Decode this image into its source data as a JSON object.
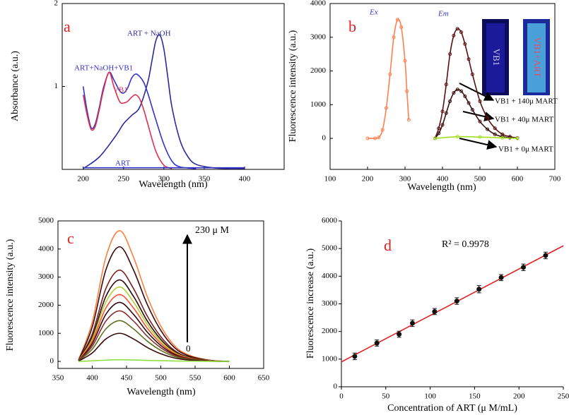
{
  "chart_data": [
    {
      "type": "line",
      "panel_label": "a",
      "x_label": "Wavelength (nm)",
      "y_label": "Absorbance (a.u.)",
      "xlim": [
        174,
        449
      ],
      "ylim": [
        0,
        2
      ],
      "xticks": [
        200,
        250,
        300,
        350,
        400
      ],
      "yticks": [
        1,
        2
      ],
      "series": [
        {
          "name": "ART + NaOH",
          "color": "#2a2a9a",
          "x": [
            200,
            220,
            240,
            250,
            260,
            270,
            280,
            285,
            290,
            295,
            300,
            305,
            310,
            320,
            330,
            340,
            360,
            380,
            400
          ],
          "values": [
            0.01,
            0.15,
            0.4,
            0.55,
            0.65,
            0.75,
            1.05,
            1.3,
            1.55,
            1.62,
            1.45,
            1.1,
            0.75,
            0.35,
            0.15,
            0.06,
            0.02,
            0.01,
            0.01
          ]
        },
        {
          "name": "ART+NaOH+VB1",
          "color": "#3333cc",
          "x": [
            200,
            205,
            210,
            215,
            220,
            225,
            232,
            238,
            245,
            250,
            255,
            260,
            265,
            270,
            275,
            280,
            290,
            300,
            310,
            320,
            340
          ],
          "values": [
            1.0,
            0.7,
            0.5,
            0.55,
            0.75,
            0.98,
            1.17,
            1.08,
            0.95,
            0.92,
            0.98,
            1.1,
            1.15,
            1.12,
            1.05,
            0.92,
            0.6,
            0.3,
            0.1,
            0.03,
            0.01
          ]
        },
        {
          "name": "VB1",
          "color": "#e03050",
          "x": [
            200,
            205,
            210,
            215,
            220,
            225,
            232,
            238,
            245,
            250,
            255,
            260,
            265,
            270,
            275,
            280,
            290,
            300,
            310
          ],
          "values": [
            0.9,
            0.65,
            0.48,
            0.52,
            0.72,
            0.95,
            1.17,
            1.0,
            0.82,
            0.8,
            0.82,
            0.87,
            0.9,
            0.85,
            0.72,
            0.55,
            0.22,
            0.05,
            0.01
          ]
        },
        {
          "name": "ART",
          "color": "#3333cc",
          "x": [
            200,
            400
          ],
          "values": [
            0.02,
            0.02
          ]
        }
      ]
    },
    {
      "type": "line",
      "panel_label": "b",
      "x_label": "Wavelength (nm)",
      "y_label": "Fluorescence intensity (a.u.)",
      "xlim": [
        100,
        700
      ],
      "ylim": [
        -920,
        4000
      ],
      "xticks": [
        100,
        200,
        300,
        400,
        500,
        600,
        700
      ],
      "yticks": [
        0,
        1000,
        2000,
        3000,
        4000
      ],
      "markers": true,
      "annotations": [
        "Em",
        "VB1",
        "VB1+ART"
      ],
      "series": [
        {
          "name": "Ex",
          "color": "#ff7f50",
          "x": [
            200,
            220,
            230,
            240,
            250,
            260,
            270,
            280,
            290,
            300,
            305,
            310
          ],
          "values": [
            0,
            0,
            30,
            250,
            900,
            1900,
            3000,
            3520,
            3300,
            2300,
            1400,
            550
          ]
        },
        {
          "name": "VB1 + 140μ MART",
          "color": "#5a0f0f",
          "x": [
            380,
            390,
            400,
            410,
            420,
            430,
            440,
            450,
            460,
            470,
            480,
            500,
            520,
            540,
            560,
            580,
            600
          ],
          "values": [
            0,
            300,
            800,
            1600,
            2500,
            3050,
            3250,
            3150,
            2800,
            2350,
            1900,
            1100,
            600,
            300,
            120,
            50,
            10
          ]
        },
        {
          "name": "VB1 + 40μ MART",
          "color": "#3a1010",
          "x": [
            380,
            390,
            400,
            410,
            420,
            430,
            440,
            450,
            460,
            470,
            480,
            500,
            520,
            540,
            560,
            580,
            600
          ],
          "values": [
            0,
            150,
            400,
            750,
            1100,
            1350,
            1450,
            1400,
            1250,
            1050,
            850,
            500,
            270,
            120,
            50,
            20,
            5
          ]
        },
        {
          "name": "VB1 + 0μ MART",
          "color": "#a0e020",
          "x": [
            380,
            440,
            500,
            560,
            600
          ],
          "values": [
            0,
            50,
            40,
            15,
            0
          ]
        }
      ]
    },
    {
      "type": "line",
      "panel_label": "c",
      "x_label": "Wavelength (nm)",
      "y_label": "Fluorescence intensity (a.u.)",
      "xlim": [
        350,
        650
      ],
      "ylim": [
        -250,
        5000
      ],
      "xticks": [
        350,
        400,
        450,
        500,
        550,
        600,
        650
      ],
      "yticks": [
        0,
        1000,
        2000,
        3000,
        4000,
        5000
      ],
      "annotations": [
        "230 μ M",
        "0"
      ],
      "x": [
        380,
        400,
        420,
        440,
        460,
        480,
        500,
        520,
        540,
        570,
        600
      ],
      "series": [
        {
          "color": "#ff7f3f",
          "values": [
            47,
            1395,
            3720,
            4650,
            3720,
            2325,
            1256,
            558,
            233,
            47,
            0
          ]
        },
        {
          "color": "#3a0a0a",
          "values": [
            41,
            1224,
            3264,
            4080,
            3264,
            2040,
            1102,
            490,
            204,
            41,
            0
          ]
        },
        {
          "color": "#7a2020",
          "values": [
            33,
            975,
            2600,
            3250,
            2600,
            1625,
            878,
            390,
            163,
            33,
            0
          ]
        },
        {
          "color": "#2a0808",
          "values": [
            29,
            870,
            2320,
            2900,
            2320,
            1450,
            783,
            348,
            145,
            29,
            0
          ]
        },
        {
          "color": "#b0d030",
          "values": [
            27,
            795,
            2120,
            2650,
            2120,
            1325,
            716,
            318,
            133,
            27,
            0
          ]
        },
        {
          "color": "#ff5030",
          "values": [
            24,
            714,
            1904,
            2380,
            1904,
            1190,
            643,
            286,
            119,
            24,
            0
          ]
        },
        {
          "color": "#300a0a",
          "values": [
            21,
            630,
            1680,
            2100,
            1680,
            1050,
            567,
            252,
            105,
            21,
            0
          ]
        },
        {
          "color": "#8a3030",
          "values": [
            18,
            540,
            1440,
            1800,
            1440,
            900,
            486,
            216,
            90,
            18,
            0
          ]
        },
        {
          "color": "#607020",
          "values": [
            15,
            435,
            1160,
            1450,
            1160,
            725,
            392,
            174,
            73,
            15,
            0
          ]
        },
        {
          "color": "#3a0808",
          "values": [
            10,
            300,
            800,
            1000,
            800,
            500,
            270,
            120,
            50,
            10,
            0
          ]
        },
        {
          "color": "#90e040",
          "values": [
            0,
            20,
            45,
            60,
            50,
            35,
            25,
            15,
            8,
            3,
            0
          ]
        }
      ]
    },
    {
      "type": "scatter",
      "panel_label": "d",
      "x_label": "Concentration of ART (μ M/mL)",
      "y_label": "Fluorescence increase (a.u.)",
      "xlim": [
        0,
        250
      ],
      "ylim": [
        0,
        6000
      ],
      "xticks": [
        0,
        50,
        100,
        150,
        200,
        250
      ],
      "yticks": [
        0,
        1000,
        2000,
        3000,
        4000,
        5000,
        6000
      ],
      "annotations": [
        "R² = 0.9978"
      ],
      "series": [
        {
          "color": "#111111",
          "x": [
            15,
            40,
            65,
            80,
            105,
            130,
            155,
            180,
            205,
            230
          ],
          "values": [
            1100,
            1580,
            1900,
            2300,
            2720,
            3100,
            3530,
            3950,
            4320,
            4750
          ],
          "errors": [
            120,
            110,
            110,
            120,
            110,
            120,
            130,
            110,
            120,
            120
          ]
        }
      ],
      "fit": {
        "color": "#e02020",
        "x": [
          0,
          250
        ],
        "values": [
          900,
          5100
        ]
      }
    }
  ]
}
